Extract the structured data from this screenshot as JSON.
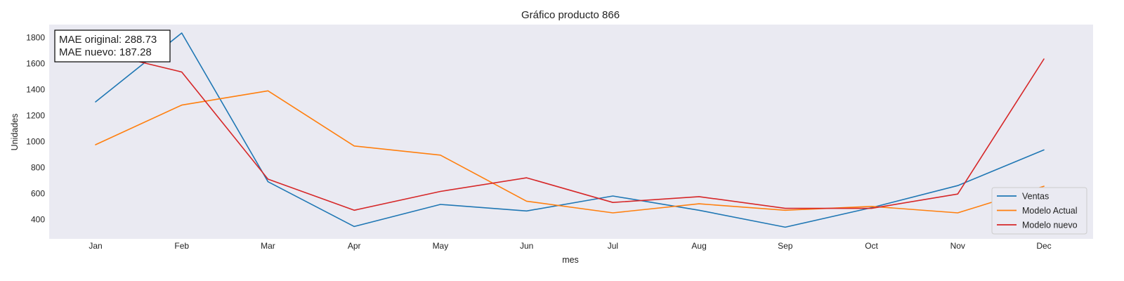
{
  "chart_data": {
    "type": "line",
    "title": "Gráfico producto 866",
    "xlabel": "mes",
    "ylabel": "Unidades",
    "categories": [
      "Jan",
      "Feb",
      "Mar",
      "Apr",
      "May",
      "Jun",
      "Jul",
      "Aug",
      "Sep",
      "Oct",
      "Nov",
      "Dec"
    ],
    "y_ticks": [
      400,
      600,
      800,
      1000,
      1200,
      1400,
      1600,
      1800
    ],
    "ylim": [
      250,
      1900
    ],
    "grid": false,
    "legend_position": "bottom-right",
    "series": [
      {
        "name": "Ventas",
        "color": "#1f77b4",
        "values": [
          1305,
          1835,
          690,
          345,
          515,
          465,
          580,
          470,
          340,
          490,
          660,
          935
        ]
      },
      {
        "name": "Modelo Actual",
        "color": "#ff7f0e",
        "values": [
          975,
          1280,
          1390,
          965,
          895,
          540,
          450,
          520,
          470,
          500,
          450,
          655
        ]
      },
      {
        "name": "Modelo nuevo",
        "color": "#d62728",
        "values": [
          1695,
          1535,
          710,
          470,
          615,
          720,
          530,
          575,
          485,
          485,
          595,
          1635
        ]
      }
    ],
    "annotation": {
      "line1": "MAE original: 288.73",
      "line2": "MAE nuevo: 187.28"
    }
  }
}
